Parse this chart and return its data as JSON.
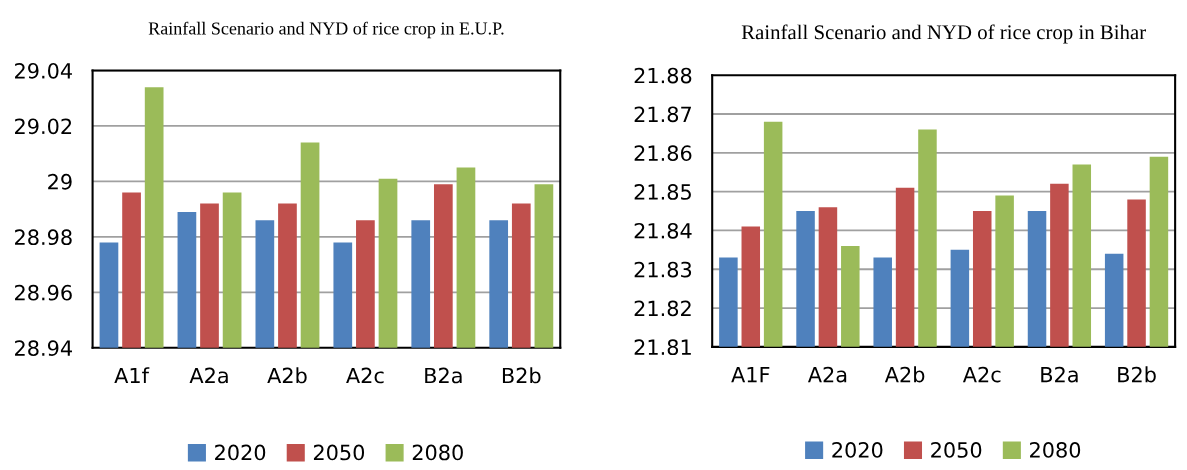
{
  "chart_data": [
    {
      "type": "bar",
      "title": "Rainfall Scenario and NYD of rice crop in E.U.P.",
      "categories": [
        "A1f",
        "A2a",
        "A2b",
        "A2c",
        "B2a",
        "B2b"
      ],
      "series": [
        {
          "name": "2020",
          "color": "#4f81bd",
          "values": [
            28.978,
            28.989,
            28.986,
            28.978,
            28.986,
            28.986
          ]
        },
        {
          "name": "2050",
          "color": "#c0504d",
          "values": [
            28.996,
            28.992,
            28.992,
            28.986,
            28.999,
            28.992
          ]
        },
        {
          "name": "2080",
          "color": "#9bbb59",
          "values": [
            29.034,
            28.996,
            29.014,
            29.001,
            29.005,
            28.999
          ]
        }
      ],
      "ylim": [
        28.94,
        29.04
      ],
      "yticks": [
        {
          "value": 28.94,
          "label": "28.94"
        },
        {
          "value": 28.96,
          "label": "28.96"
        },
        {
          "value": 28.98,
          "label": "28.98"
        },
        {
          "value": 29,
          "label": "29"
        },
        {
          "value": 29.02,
          "label": "29.02"
        },
        {
          "value": 29.04,
          "label": "29.04"
        }
      ],
      "grid": "y",
      "legend": "bottom"
    },
    {
      "type": "bar",
      "title": "Rainfall Scenario and NYD of rice crop in Bihar",
      "categories": [
        "A1F",
        "A2a",
        "A2b",
        "A2c",
        "B2a",
        "B2b"
      ],
      "series": [
        {
          "name": "2020",
          "color": "#4f81bd",
          "values": [
            21.833,
            21.845,
            21.833,
            21.835,
            21.845,
            21.834
          ]
        },
        {
          "name": "2050",
          "color": "#c0504d",
          "values": [
            21.841,
            21.846,
            21.851,
            21.845,
            21.852,
            21.848
          ]
        },
        {
          "name": "2080",
          "color": "#9bbb59",
          "values": [
            21.868,
            21.836,
            21.866,
            21.849,
            21.857,
            21.859
          ]
        }
      ],
      "ylim": [
        21.81,
        21.88
      ],
      "yticks": [
        {
          "value": 21.81,
          "label": "21.81"
        },
        {
          "value": 21.82,
          "label": "21.82"
        },
        {
          "value": 21.83,
          "label": "21.83"
        },
        {
          "value": 21.84,
          "label": "21.84"
        },
        {
          "value": 21.85,
          "label": "21.85"
        },
        {
          "value": 21.86,
          "label": "21.86"
        },
        {
          "value": 21.87,
          "label": "21.87"
        },
        {
          "value": 21.88,
          "label": "21.88"
        }
      ],
      "grid": "y",
      "legend": "bottom"
    }
  ]
}
